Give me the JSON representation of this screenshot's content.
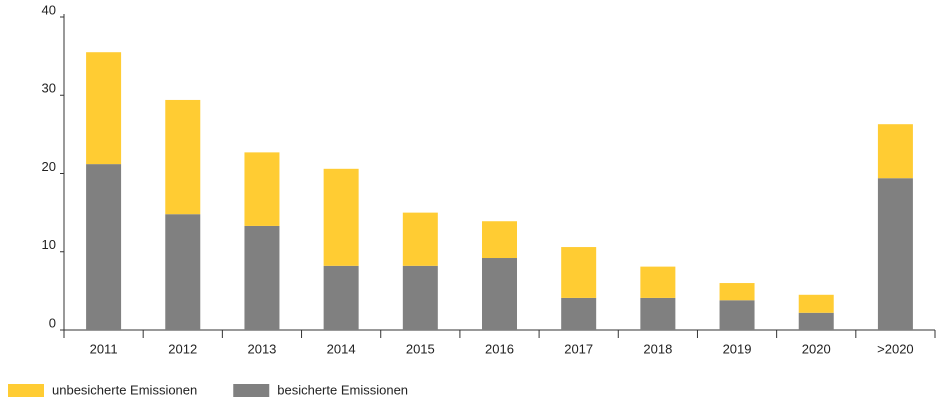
{
  "chart_data": {
    "type": "stacked_bar",
    "categories": [
      "2011",
      "2012",
      "2013",
      "2014",
      "2015",
      "2016",
      "2017",
      "2018",
      "2019",
      "2020",
      ">2020"
    ],
    "series": [
      {
        "name": "unbesicherte Emissionen",
        "color": "#ffcc33",
        "values": [
          14.3,
          14.6,
          9.4,
          12.4,
          6.8,
          4.7,
          6.5,
          4.0,
          2.2,
          2.3,
          6.9
        ]
      },
      {
        "name": "besicherte Emissionen",
        "color": "#808080",
        "values": [
          21.2,
          14.8,
          13.3,
          8.2,
          8.2,
          9.2,
          4.1,
          4.1,
          3.8,
          2.2,
          19.4
        ]
      }
    ],
    "ylim": [
      0,
      40
    ],
    "yticks": [
      0,
      10,
      20,
      30,
      40
    ],
    "grid": false,
    "legend": "bottom-left"
  }
}
